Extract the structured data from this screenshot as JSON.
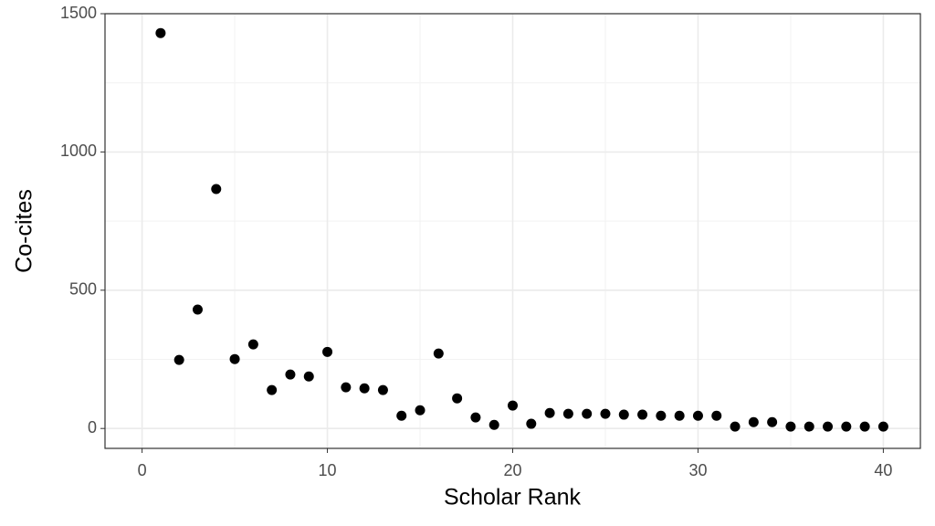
{
  "chart_data": {
    "type": "scatter",
    "x_label": "Scholar Rank",
    "y_label": "Co-cites",
    "x": [
      1,
      2,
      3,
      4,
      5,
      6,
      7,
      8,
      9,
      10,
      11,
      12,
      13,
      14,
      15,
      16,
      17,
      18,
      19,
      20,
      21,
      22,
      23,
      24,
      25,
      26,
      27,
      28,
      29,
      30,
      31,
      32,
      33,
      34,
      35,
      36,
      37,
      38,
      39,
      40
    ],
    "values": [
      1430,
      248,
      430,
      866,
      251,
      304,
      139,
      195,
      188,
      277,
      149,
      145,
      139,
      46,
      66,
      271,
      109,
      40,
      13,
      83,
      17,
      56,
      53,
      53,
      53,
      50,
      50,
      46,
      46,
      46,
      46,
      7,
      23,
      23,
      7,
      7,
      7,
      7,
      7,
      7
    ],
    "color": "#000000",
    "xlim": [
      -2,
      42
    ],
    "xticks": [
      0,
      10,
      20,
      30,
      40
    ],
    "ylim": [
      -72,
      1500
    ],
    "yticks": [
      0,
      500,
      1000,
      1500
    ],
    "grid": true,
    "minor_grid": true
  }
}
